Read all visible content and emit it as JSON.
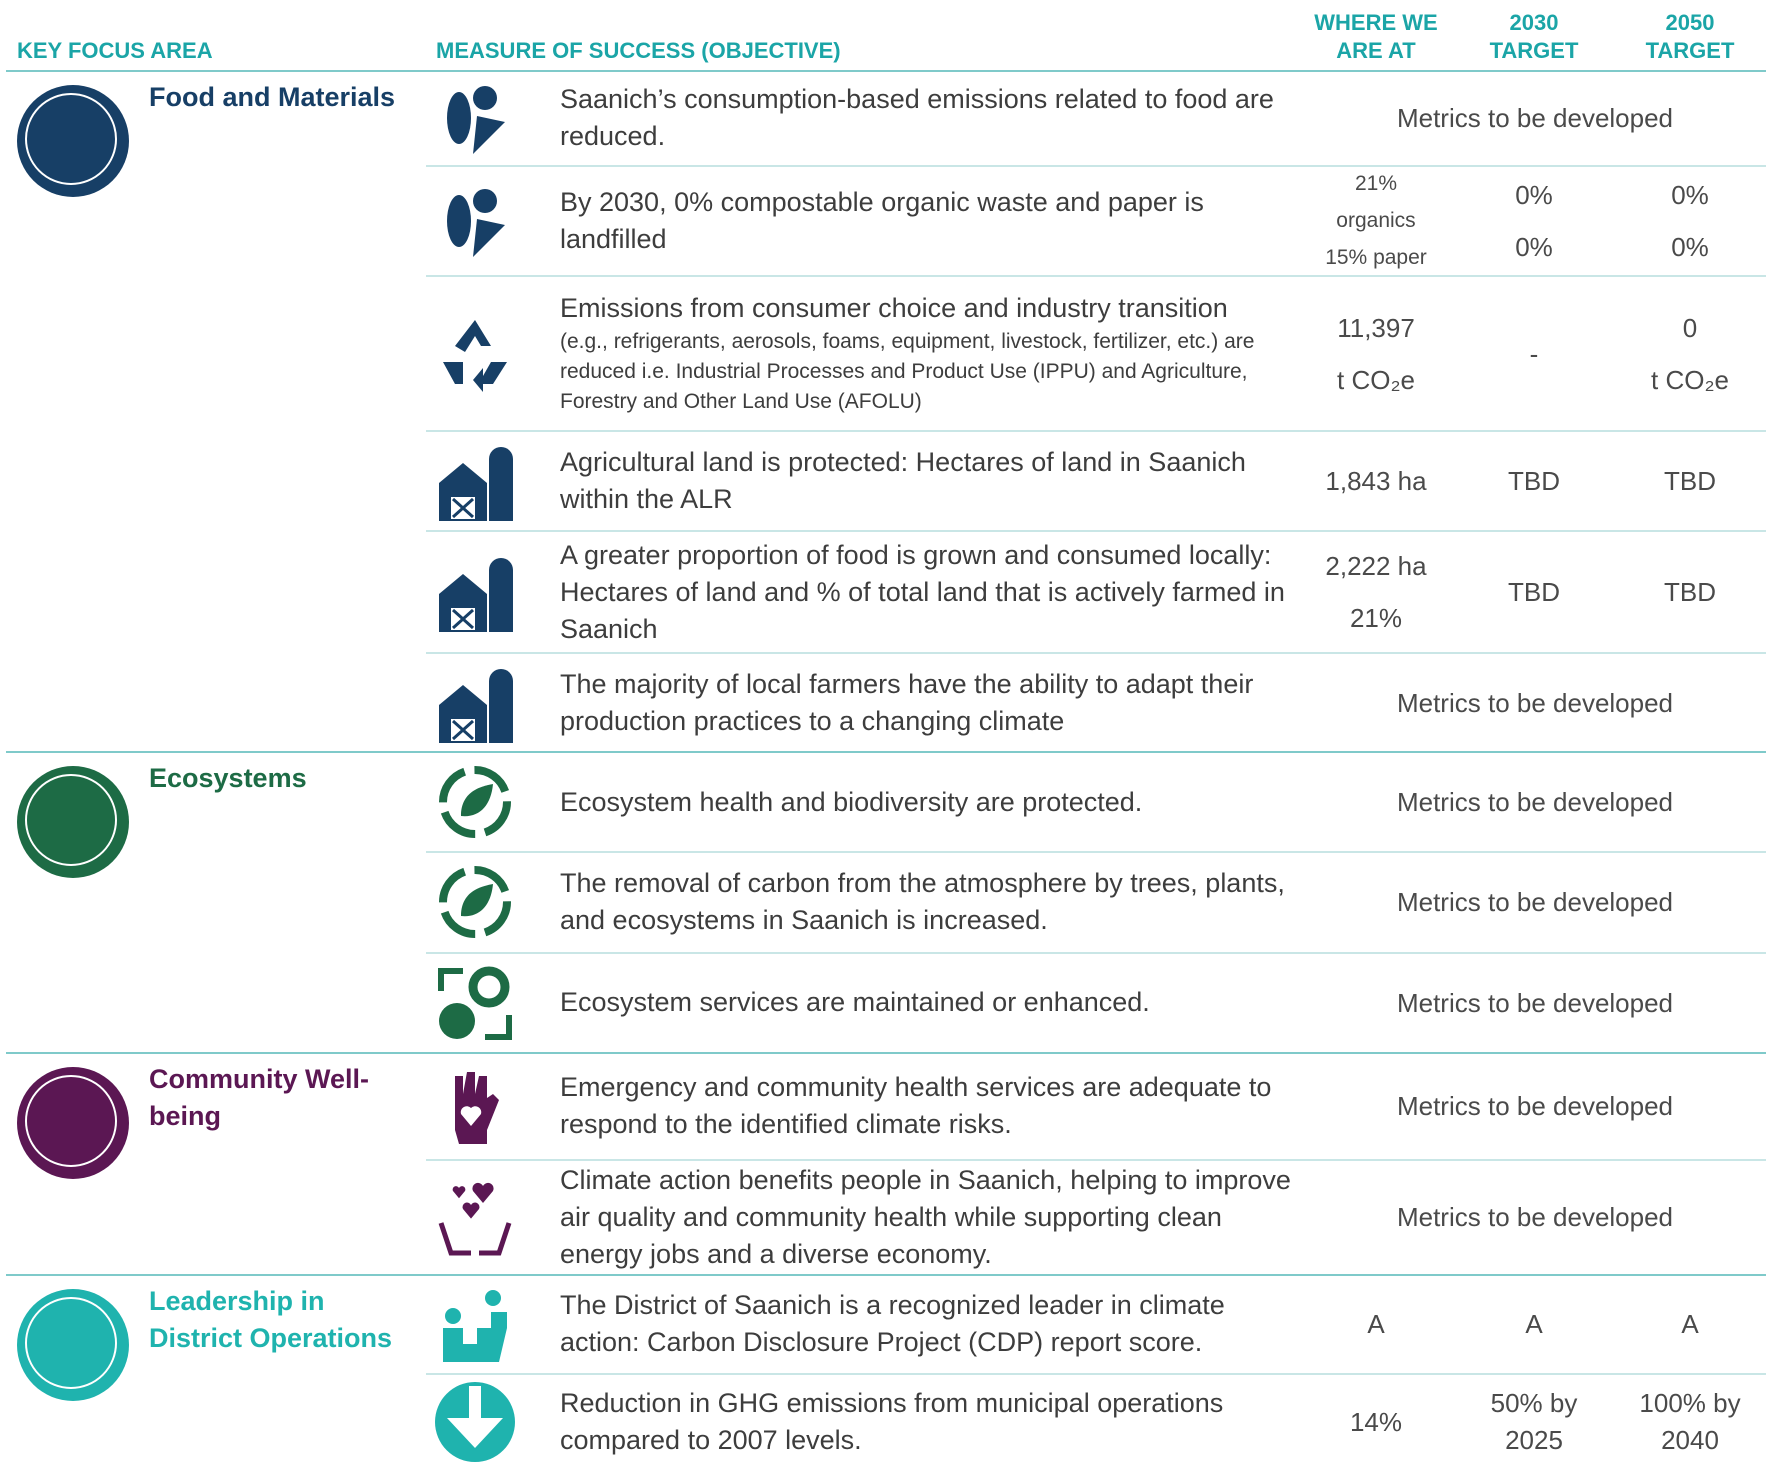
{
  "header": {
    "columns": [
      "KEY FOCUS AREA",
      "MEASURE OF SUCCESS (OBJECTIVE)",
      "WHERE WE ARE AT",
      "2030 TARGET",
      "2050 TARGET"
    ]
  },
  "sections": [
    {
      "title": "Food and Materials",
      "color": "#173f66",
      "rows": [
        {
          "objective": "Saanich’s consumption-based emissions related to food are reduced.",
          "metrics": "Metrics to be developed"
        },
        {
          "objective": "By 2030, 0% compostable organic waste and paper is landfilled",
          "where": [
            "21%",
            "organics",
            "15% paper"
          ],
          "target_2030": [
            "0%",
            "0%"
          ],
          "target_2050": [
            "0%",
            "0%"
          ]
        },
        {
          "objective": "Emissions from consumer choice and industry transition",
          "objective_note": "(e.g., refrigerants, aerosols, foams, equipment, livestock, fertilizer, etc.) are reduced i.e. Industrial Processes and Product Use (IPPU) and Agriculture, Forestry and Other Land Use (AFOLU)",
          "where": [
            "11,397",
            "t CO₂e"
          ],
          "target_2030": [
            "-"
          ],
          "target_2050": [
            "0",
            "t CO₂e"
          ]
        },
        {
          "objective": "Agricultural land is protected: Hectares of land in Saanich within the ALR",
          "where": [
            "1,843 ha"
          ],
          "target_2030": [
            "TBD"
          ],
          "target_2050": [
            "TBD"
          ]
        },
        {
          "objective": "A greater proportion of food is grown and consumed locally: Hectares of land and % of total land that is actively farmed in Saanich",
          "where": [
            "2,222 ha",
            "21%"
          ],
          "target_2030": [
            "TBD"
          ],
          "target_2050": [
            "TBD"
          ]
        },
        {
          "objective": "The majority of local farmers have the ability to adapt their production practices to a changing climate",
          "metrics": "Metrics to be developed"
        }
      ]
    },
    {
      "title": "Ecosystems",
      "color": "#1d6b45",
      "rows": [
        {
          "objective": "Ecosystem health and biodiversity are protected.",
          "metrics": "Metrics to be developed"
        },
        {
          "objective": "The removal of carbon from the atmosphere by trees, plants, and ecosystems in Saanich is increased.",
          "metrics": "Metrics to be developed"
        },
        {
          "objective": "Ecosystem services are maintained or enhanced.",
          "metrics": "Metrics to be developed"
        }
      ]
    },
    {
      "title": "Community Well-being",
      "color": "#5b1753",
      "rows": [
        {
          "objective": "Emergency and community health services are adequate to respond to the identified climate risks.",
          "metrics": "Metrics to be developed"
        },
        {
          "objective": "Climate action benefits people in Saanich, helping to improve air quality and community health while supporting clean energy jobs and a diverse economy.",
          "metrics": "Metrics to be developed"
        }
      ]
    },
    {
      "title": "Leadership in District Operations",
      "color": "#1fb3ae",
      "rows": [
        {
          "objective": "The District of Saanich is a recognized leader in climate action: Carbon Disclosure Project (CDP) report score.",
          "where": [
            "A"
          ],
          "target_2030": [
            "A"
          ],
          "target_2050": [
            "A"
          ]
        },
        {
          "objective": "Reduction in GHG emissions from municipal operations compared to 2007 levels.",
          "where": [
            "14%"
          ],
          "target_2030": [
            "50% by",
            "2025"
          ],
          "target_2050": [
            "100% by",
            "2040"
          ]
        }
      ]
    }
  ]
}
